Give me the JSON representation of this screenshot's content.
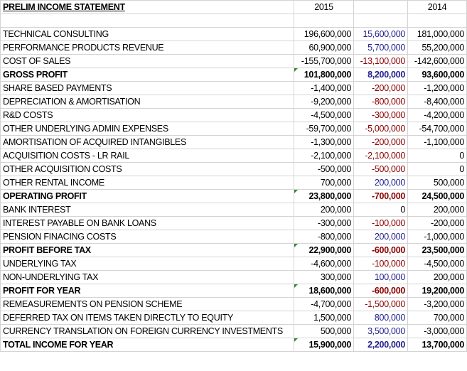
{
  "header": {
    "title": "PRELIM INCOME STATEMENT",
    "col_2015": "2015",
    "col_change": "",
    "col_2014": "2014"
  },
  "rows": [
    {
      "label": "TECHNICAL CONSULTING",
      "y2015": "196,600,000",
      "change": "15,600,000",
      "y2014": "181,000,000",
      "sign": "pos",
      "bold": false,
      "flag": false
    },
    {
      "label": "PERFORMANCE PRODUCTS REVENUE",
      "y2015": "60,900,000",
      "change": "5,700,000",
      "y2014": "55,200,000",
      "sign": "pos",
      "bold": false,
      "flag": false
    },
    {
      "label": "COST OF SALES",
      "y2015": "-155,700,000",
      "change": "-13,100,000",
      "y2014": "-142,600,000",
      "sign": "neg",
      "bold": false,
      "flag": false
    },
    {
      "label": "GROSS PROFIT",
      "y2015": "101,800,000",
      "change": "8,200,000",
      "y2014": "93,600,000",
      "sign": "pos",
      "bold": true,
      "flag": true
    },
    {
      "label": "SHARE BASED PAYMENTS",
      "y2015": "-1,400,000",
      "change": "-200,000",
      "y2014": "-1,200,000",
      "sign": "neg",
      "bold": false,
      "flag": false
    },
    {
      "label": "DEPRECIATION & AMORTISATION",
      "y2015": "-9,200,000",
      "change": "-800,000",
      "y2014": "-8,400,000",
      "sign": "neg",
      "bold": false,
      "flag": false
    },
    {
      "label": "R&D COSTS",
      "y2015": "-4,500,000",
      "change": "-300,000",
      "y2014": "-4,200,000",
      "sign": "neg",
      "bold": false,
      "flag": false
    },
    {
      "label": "OTHER UNDERLYING ADMIN EXPENSES",
      "y2015": "-59,700,000",
      "change": "-5,000,000",
      "y2014": "-54,700,000",
      "sign": "neg",
      "bold": false,
      "flag": false
    },
    {
      "label": "AMORTISATION OF ACQUIRED INTANGIBLES",
      "y2015": "-1,300,000",
      "change": "-200,000",
      "y2014": "-1,100,000",
      "sign": "neg",
      "bold": false,
      "flag": false
    },
    {
      "label": "ACQUISITION COSTS - LR RAIL",
      "y2015": "-2,100,000",
      "change": "-2,100,000",
      "y2014": "0",
      "sign": "neg",
      "bold": false,
      "flag": false
    },
    {
      "label": "OTHER ACQUISITION COSTS",
      "y2015": "-500,000",
      "change": "-500,000",
      "y2014": "0",
      "sign": "neg",
      "bold": false,
      "flag": false
    },
    {
      "label": "OTHER RENTAL INCOME",
      "y2015": "700,000",
      "change": "200,000",
      "y2014": "500,000",
      "sign": "pos",
      "bold": false,
      "flag": false
    },
    {
      "label": "OPERATING PROFIT",
      "y2015": "23,800,000",
      "change": "-700,000",
      "y2014": "24,500,000",
      "sign": "neg",
      "bold": true,
      "flag": true
    },
    {
      "label": "BANK INTEREST",
      "y2015": "200,000",
      "change": "0",
      "y2014": "200,000",
      "sign": "blk",
      "bold": false,
      "flag": false
    },
    {
      "label": "INTEREST PAYABLE ON BANK LOANS",
      "y2015": "-300,000",
      "change": "-100,000",
      "y2014": "-200,000",
      "sign": "neg",
      "bold": false,
      "flag": false
    },
    {
      "label": "PENSION FINACING COSTS",
      "y2015": "-800,000",
      "change": "200,000",
      "y2014": "-1,000,000",
      "sign": "pos",
      "bold": false,
      "flag": false
    },
    {
      "label": "PROFIT BEFORE TAX",
      "y2015": "22,900,000",
      "change": "-600,000",
      "y2014": "23,500,000",
      "sign": "neg",
      "bold": true,
      "flag": true
    },
    {
      "label": "UNDERLYING TAX",
      "y2015": "-4,600,000",
      "change": "-100,000",
      "y2014": "-4,500,000",
      "sign": "neg",
      "bold": false,
      "flag": false
    },
    {
      "label": "NON-UNDERLYING TAX",
      "y2015": "300,000",
      "change": "100,000",
      "y2014": "200,000",
      "sign": "pos",
      "bold": false,
      "flag": false
    },
    {
      "label": "PROFIT FOR YEAR",
      "y2015": "18,600,000",
      "change": "-600,000",
      "y2014": "19,200,000",
      "sign": "neg",
      "bold": true,
      "flag": true
    },
    {
      "label": "REMEASUREMENTS ON PENSION SCHEME",
      "y2015": "-4,700,000",
      "change": "-1,500,000",
      "y2014": "-3,200,000",
      "sign": "neg",
      "bold": false,
      "flag": false
    },
    {
      "label": "DEFERRED TAX ON ITEMS TAKEN DIRECTLY TO EQUITY",
      "y2015": "1,500,000",
      "change": "800,000",
      "y2014": "700,000",
      "sign": "pos",
      "bold": false,
      "flag": false
    },
    {
      "label": "CURRENCY TRANSLATION ON FOREIGN CURRENCY INVESTMENTS",
      "y2015": "500,000",
      "change": "3,500,000",
      "y2014": "-3,000,000",
      "sign": "pos",
      "bold": false,
      "flag": false
    },
    {
      "label": "TOTAL INCOME FOR YEAR",
      "y2015": "15,900,000",
      "change": "2,200,000",
      "y2014": "13,700,000",
      "sign": "pos",
      "bold": true,
      "flag": true
    }
  ],
  "colors": {
    "positive_change": "#1f1f8f",
    "negative_change": "#8b0000",
    "gridline": "#d4d4d4",
    "flag_marker": "#2e8b2e"
  }
}
